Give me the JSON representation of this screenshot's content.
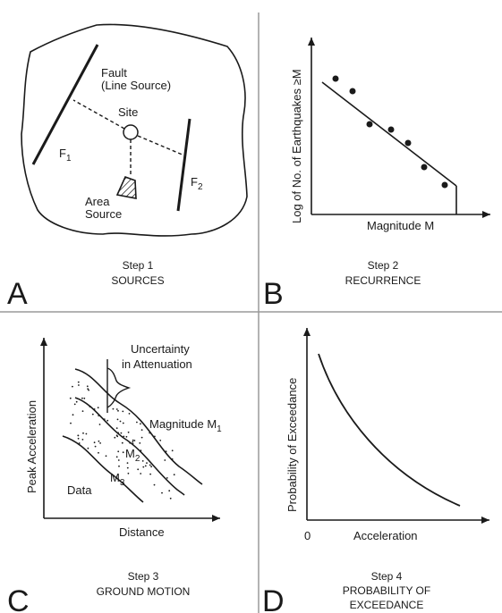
{
  "colors": {
    "ink": "#1a1a1a",
    "paper": "#ffffff",
    "rule": "#9a9a9a"
  },
  "panel_a": {
    "letter": "A",
    "step": "Step 1",
    "title": "SOURCES",
    "fault_label_1": "Fault",
    "fault_label_2": "(Line Source)",
    "site_label": "Site",
    "f1_label": "F",
    "f1_sub": "1",
    "f2_label": "F",
    "f2_sub": "2",
    "area_label_1": "Area",
    "area_label_2": "Source"
  },
  "panel_b": {
    "letter": "B",
    "step": "Step 2",
    "title": "RECURRENCE",
    "ylabel": "Log of No. of Earthquakes ≥M",
    "xlabel": "Magnitude M"
  },
  "panel_c": {
    "letter": "C",
    "step": "Step 3",
    "title": "GROUND MOTION",
    "ylabel": "Peak Acceleration",
    "xlabel": "Distance",
    "uncertainty_1": "Uncertainty",
    "uncertainty_2": "in Attenuation",
    "m1_label": "Magnitude M",
    "m1_sub": "1",
    "m2_label": "M",
    "m2_sub": "2",
    "m3_label": "M",
    "m3_sub": "3",
    "data_label": "Data"
  },
  "panel_d": {
    "letter": "D",
    "step": "Step 4",
    "title_1": "PROBABILITY OF",
    "title_2": "EXCEEDANCE",
    "ylabel": "Probability of Exceedance",
    "xlabel": "Acceleration",
    "origin_label": "0"
  }
}
